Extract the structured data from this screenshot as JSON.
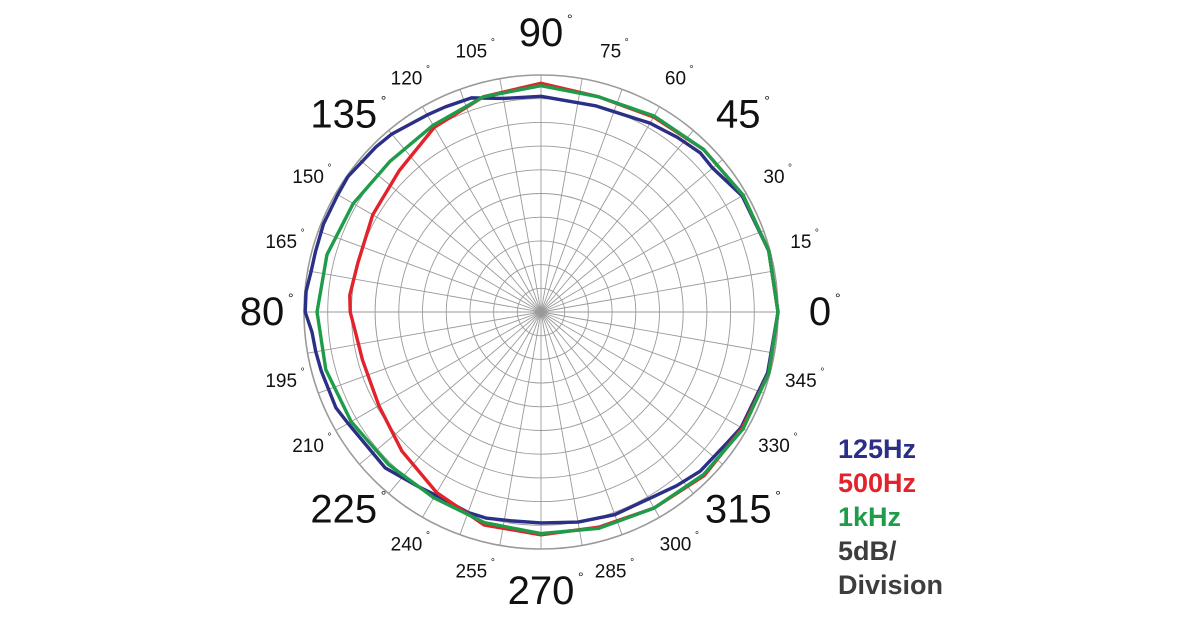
{
  "chart_data": {
    "type": "polar",
    "angle_unit": "degrees",
    "angle_tick_labels": [
      "0",
      "15",
      "30",
      "45",
      "60",
      "75",
      "90",
      "105",
      "120",
      "135",
      "150",
      "165",
      "80",
      "195",
      "210",
      "225",
      "240",
      "255",
      "270",
      "285",
      "300",
      "315",
      "330",
      "345"
    ],
    "major_angle_labels": [
      "0",
      "45",
      "90",
      "135",
      "80",
      "225",
      "270",
      "315"
    ],
    "radial_divisions": 10,
    "radial_scale_note": [
      "5dB/",
      "Division"
    ],
    "grid": true,
    "series": [
      {
        "name": "125Hz",
        "color": "#2b2f86",
        "points": [
          [
            0,
            10.0
          ],
          [
            15,
            9.95
          ],
          [
            30,
            9.8
          ],
          [
            40,
            9.45
          ],
          [
            45,
            9.5
          ],
          [
            52,
            9.35
          ],
          [
            60,
            9.2
          ],
          [
            75,
            9.0
          ],
          [
            90,
            9.1
          ],
          [
            100,
            9.15
          ],
          [
            108,
            9.5
          ],
          [
            115,
            9.55
          ],
          [
            120,
            9.6
          ],
          [
            130,
            9.8
          ],
          [
            135,
            9.85
          ],
          [
            145,
            9.95
          ],
          [
            150,
            9.9
          ],
          [
            158,
            9.9
          ],
          [
            165,
            9.85
          ],
          [
            170,
            9.85
          ],
          [
            175,
            9.95
          ],
          [
            180,
            9.95
          ],
          [
            185,
            9.7
          ],
          [
            190,
            9.65
          ],
          [
            195,
            9.6
          ],
          [
            205,
            9.55
          ],
          [
            210,
            9.4
          ],
          [
            225,
            9.3
          ],
          [
            235,
            9.0
          ],
          [
            242,
            8.9
          ],
          [
            250,
            9.0
          ],
          [
            255,
            9.0
          ],
          [
            262,
            8.9
          ],
          [
            270,
            8.9
          ],
          [
            280,
            9.0
          ],
          [
            290,
            9.1
          ],
          [
            300,
            9.1
          ],
          [
            308,
            9.3
          ],
          [
            315,
            9.5
          ],
          [
            325,
            9.6
          ],
          [
            330,
            9.75
          ],
          [
            345,
            9.9
          ],
          [
            360,
            10.0
          ]
        ]
      },
      {
        "name": "500Hz",
        "color": "#e2232b",
        "points": [
          [
            0,
            10.0
          ],
          [
            15,
            9.95
          ],
          [
            30,
            9.85
          ],
          [
            45,
            9.7
          ],
          [
            60,
            9.5
          ],
          [
            75,
            9.4
          ],
          [
            90,
            9.65
          ],
          [
            105,
            9.4
          ],
          [
            120,
            9.0
          ],
          [
            135,
            8.45
          ],
          [
            150,
            8.2
          ],
          [
            165,
            8.0
          ],
          [
            175,
            8.1
          ],
          [
            180,
            8.05
          ],
          [
            185,
            7.9
          ],
          [
            195,
            7.8
          ],
          [
            210,
            7.9
          ],
          [
            225,
            8.3
          ],
          [
            240,
            8.8
          ],
          [
            255,
            9.3
          ],
          [
            270,
            9.4
          ],
          [
            285,
            9.4
          ],
          [
            300,
            9.55
          ],
          [
            315,
            9.75
          ],
          [
            330,
            9.8
          ],
          [
            345,
            9.95
          ],
          [
            360,
            10.0
          ]
        ]
      },
      {
        "name": "1kHz",
        "color": "#1f9c4a",
        "points": [
          [
            0,
            10.0
          ],
          [
            15,
            9.95
          ],
          [
            30,
            9.85
          ],
          [
            45,
            9.7
          ],
          [
            60,
            9.55
          ],
          [
            75,
            9.4
          ],
          [
            90,
            9.55
          ],
          [
            105,
            9.4
          ],
          [
            120,
            9.1
          ],
          [
            135,
            9.0
          ],
          [
            150,
            9.15
          ],
          [
            165,
            9.35
          ],
          [
            180,
            9.45
          ],
          [
            195,
            9.4
          ],
          [
            210,
            9.25
          ],
          [
            225,
            9.1
          ],
          [
            240,
            9.05
          ],
          [
            255,
            9.2
          ],
          [
            270,
            9.35
          ],
          [
            285,
            9.45
          ],
          [
            300,
            9.55
          ],
          [
            315,
            9.7
          ],
          [
            330,
            9.85
          ],
          [
            345,
            9.95
          ],
          [
            360,
            10.0
          ]
        ]
      }
    ]
  },
  "legend": {
    "items": [
      {
        "label": "125Hz",
        "color": "#2b2f86"
      },
      {
        "label": "500Hz",
        "color": "#e2232b"
      },
      {
        "label": "1kHz",
        "color": "#1f9c4a"
      }
    ],
    "scale_line1": "5dB/",
    "scale_line2": "Division"
  }
}
